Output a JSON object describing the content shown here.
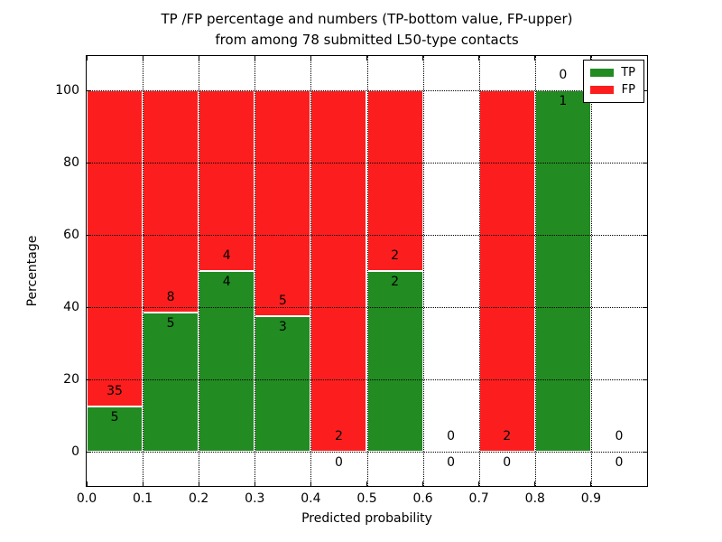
{
  "chart_data": {
    "type": "bar",
    "stacked": true,
    "title_line1": "TP /FP percentage and numbers (TP-bottom value, FP-upper)",
    "title_line2": "from among 78 submitted L50-type contacts",
    "xlabel": "Predicted probability",
    "ylabel": "Percentage",
    "xlim": [
      0.0,
      1.0
    ],
    "ylim": [
      -9.5,
      109.5
    ],
    "grid": true,
    "legend_position": "upper right",
    "legend": [
      {
        "name": "tp",
        "label": "TP",
        "color": "#228b22"
      },
      {
        "name": "fp",
        "label": "FP",
        "color": "#fc1e1e"
      }
    ],
    "colors": {
      "tp": "#228b22",
      "fp": "#fc1e1e",
      "bar_edge": "#ffffff"
    },
    "xticks": {
      "values": [
        0.0,
        0.1,
        0.2,
        0.3,
        0.4,
        0.5,
        0.6,
        0.7,
        0.8,
        0.9
      ],
      "labels": [
        "0.0",
        "0.1",
        "0.2",
        "0.3",
        "0.4",
        "0.5",
        "0.6",
        "0.7",
        "0.8",
        "0.9"
      ]
    },
    "yticks": {
      "values": [
        0,
        20,
        40,
        60,
        80,
        100
      ],
      "labels": [
        "0",
        "20",
        "40",
        "60",
        "80",
        "100"
      ]
    },
    "bins": [
      {
        "range": [
          0.0,
          0.1
        ],
        "tp": 5,
        "fp": 35
      },
      {
        "range": [
          0.1,
          0.2
        ],
        "tp": 5,
        "fp": 8
      },
      {
        "range": [
          0.2,
          0.3
        ],
        "tp": 4,
        "fp": 4
      },
      {
        "range": [
          0.3,
          0.4
        ],
        "tp": 3,
        "fp": 5
      },
      {
        "range": [
          0.4,
          0.5
        ],
        "tp": 0,
        "fp": 2
      },
      {
        "range": [
          0.5,
          0.6
        ],
        "tp": 2,
        "fp": 2
      },
      {
        "range": [
          0.6,
          0.7
        ],
        "tp": 0,
        "fp": 0
      },
      {
        "range": [
          0.7,
          0.8
        ],
        "tp": 0,
        "fp": 2
      },
      {
        "range": [
          0.8,
          0.9
        ],
        "tp": 1,
        "fp": 0
      },
      {
        "range": [
          0.9,
          1.0
        ],
        "tp": 0,
        "fp": 0
      }
    ]
  }
}
